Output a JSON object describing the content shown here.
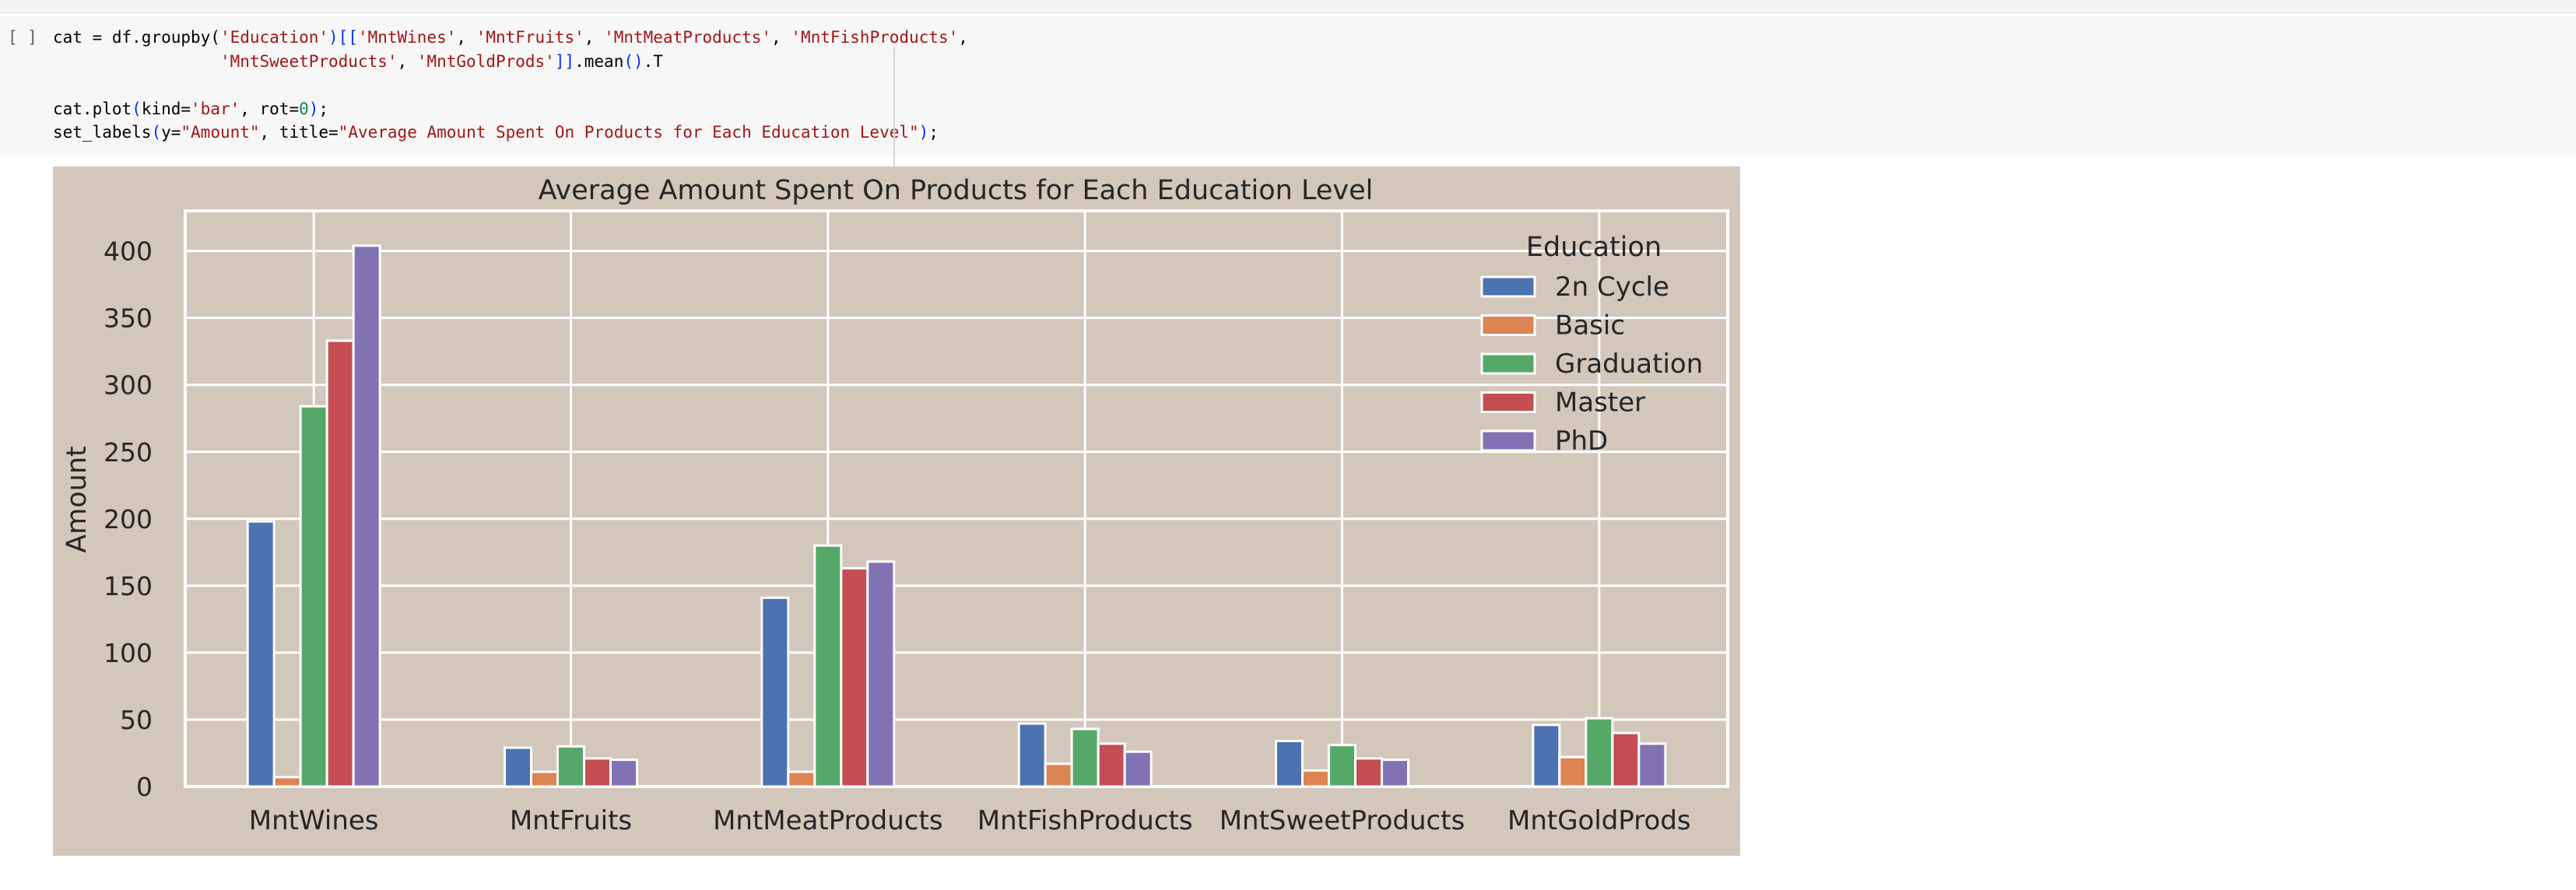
{
  "cell": {
    "run_indicator": "[ ]",
    "code_lines": [
      [
        {
          "t": "cat = df.groupby(",
          "c": ""
        },
        {
          "t": "'Education'",
          "c": "s"
        },
        {
          "t": ")[[",
          "c": "b"
        },
        {
          "t": "'MntWines'",
          "c": "s"
        },
        {
          "t": ", ",
          "c": ""
        },
        {
          "t": "'MntFruits'",
          "c": "s"
        },
        {
          "t": ", ",
          "c": ""
        },
        {
          "t": "'MntMeatProducts'",
          "c": "s"
        },
        {
          "t": ", ",
          "c": ""
        },
        {
          "t": "'MntFishProducts'",
          "c": "s"
        },
        {
          "t": ",",
          "c": ""
        }
      ],
      [
        {
          "t": "                 ",
          "c": ""
        },
        {
          "t": "'MntSweetProducts'",
          "c": "s"
        },
        {
          "t": ", ",
          "c": ""
        },
        {
          "t": "'MntGoldProds'",
          "c": "s"
        },
        {
          "t": "]]",
          "c": "b"
        },
        {
          "t": ".mean",
          "c": ""
        },
        {
          "t": "()",
          "c": "b"
        },
        {
          "t": ".T",
          "c": ""
        }
      ],
      [],
      [
        {
          "t": "cat.plot",
          "c": ""
        },
        {
          "t": "(",
          "c": "b"
        },
        {
          "t": "kind=",
          "c": ""
        },
        {
          "t": "'bar'",
          "c": "s"
        },
        {
          "t": ", rot=",
          "c": ""
        },
        {
          "t": "0",
          "c": "n"
        },
        {
          "t": ")",
          "c": "b"
        },
        {
          "t": ";",
          "c": ""
        }
      ],
      [
        {
          "t": "set_labels",
          "c": ""
        },
        {
          "t": "(",
          "c": "b"
        },
        {
          "t": "y=",
          "c": ""
        },
        {
          "t": "\"Amount\"",
          "c": "s"
        },
        {
          "t": ", title=",
          "c": ""
        },
        {
          "t": "\"Average Amount Spent On Products for Each Education Level\"",
          "c": "s"
        },
        {
          "t": ")",
          "c": "b"
        },
        {
          "t": ";",
          "c": ""
        }
      ]
    ]
  },
  "chart_data": {
    "type": "bar",
    "title": "Average Amount Spent On Products for Each Education Level",
    "xlabel": "",
    "ylabel": "Amount",
    "ylim": [
      0,
      430
    ],
    "yticks": [
      0,
      50,
      100,
      150,
      200,
      250,
      300,
      350,
      400
    ],
    "grid": true,
    "legend_title": "Education",
    "legend_position": "upper right",
    "categories": [
      "MntWines",
      "MntFruits",
      "MntMeatProducts",
      "MntFishProducts",
      "MntSweetProducts",
      "MntGoldProds"
    ],
    "series": [
      {
        "name": "2n Cycle",
        "color": "#4c72b0",
        "values": [
          198,
          29,
          141,
          47,
          34,
          46
        ]
      },
      {
        "name": "Basic",
        "color": "#dd8452",
        "values": [
          7,
          11,
          11,
          17,
          12,
          22
        ]
      },
      {
        "name": "Graduation",
        "color": "#55a868",
        "values": [
          284,
          30,
          180,
          43,
          31,
          51
        ]
      },
      {
        "name": "Master",
        "color": "#c44e52",
        "values": [
          333,
          21,
          163,
          32,
          21,
          40
        ]
      },
      {
        "name": "PhD",
        "color": "#8172b3",
        "values": [
          404,
          20,
          168,
          26,
          20,
          32
        ]
      }
    ],
    "background_color": "#d3c7bb",
    "grid_color": "#ffffff"
  }
}
